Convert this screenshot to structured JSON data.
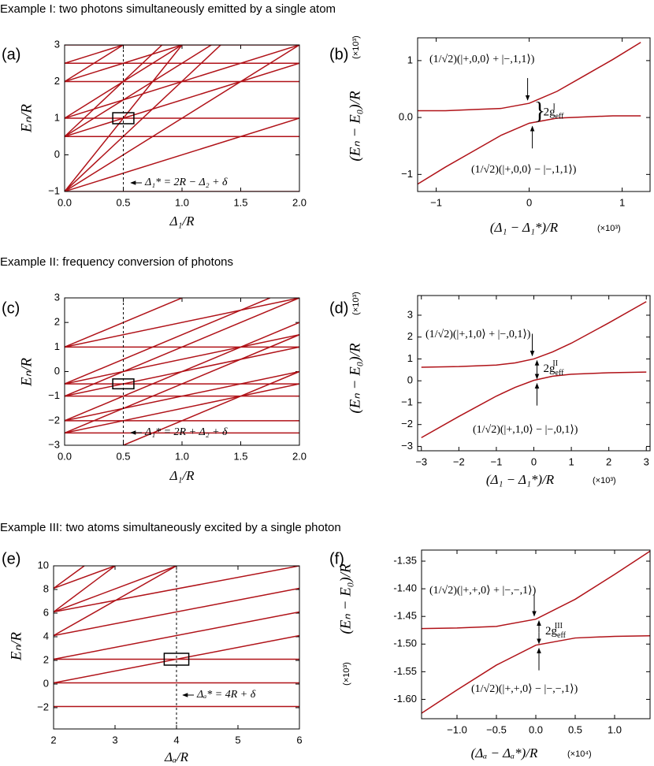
{
  "headings": [
    "Example I: two photons simultaneously emitted by a single atom",
    "Example II: frequency conversion of photons",
    "Example III: two atoms simultaneously excited by a single photon"
  ],
  "chart_data": [
    {
      "type": "line",
      "panel": "(a)",
      "x_label": "Δ₁/R",
      "y_label": "Eₙ/R",
      "color": "#b01218",
      "xlim": [
        0,
        2
      ],
      "ylim": [
        -1,
        3
      ],
      "xticks": [
        {
          "value": 0,
          "label": "0.0"
        },
        0.5,
        {
          "value": 1,
          "label": "1.0"
        },
        1.5,
        {
          "value": 2,
          "label": "2.0"
        }
      ],
      "yticks": [
        {
          "value": -1,
          "label": "−1"
        },
        0,
        1,
        2,
        3
      ],
      "series": [
        {
          "x": [
            0,
            2
          ],
          "values": [
            -1,
            -1
          ]
        },
        {
          "x": [
            0,
            2
          ],
          "values": [
            0.5,
            0.5
          ]
        },
        {
          "x": [
            0,
            2
          ],
          "values": [
            1,
            1
          ]
        },
        {
          "x": [
            0,
            2
          ],
          "values": [
            2,
            2
          ]
        },
        {
          "x": [
            0,
            2
          ],
          "values": [
            2.5,
            2.5
          ]
        },
        {
          "x": [
            0,
            2
          ],
          "values": [
            3,
            3
          ]
        },
        {
          "x": [
            0,
            2
          ],
          "values": [
            -1,
            1
          ]
        },
        {
          "x": [
            0,
            2
          ],
          "values": [
            -1,
            3
          ]
        },
        {
          "x": [
            0,
            1.33
          ],
          "values": [
            -1,
            3
          ]
        },
        {
          "x": [
            0,
            1
          ],
          "values": [
            -1,
            3
          ]
        },
        {
          "x": [
            0,
            2
          ],
          "values": [
            0.5,
            2.5
          ]
        },
        {
          "x": [
            0,
            1.25
          ],
          "values": [
            0.5,
            3
          ]
        },
        {
          "x": [
            0,
            0.83
          ],
          "values": [
            0.5,
            3
          ]
        },
        {
          "x": [
            0,
            2
          ],
          "values": [
            1,
            3
          ]
        },
        {
          "x": [
            0,
            1
          ],
          "values": [
            1,
            3
          ]
        },
        {
          "x": [
            0,
            1
          ],
          "values": [
            2,
            3
          ]
        },
        {
          "x": [
            0,
            0.5
          ],
          "values": [
            2,
            3
          ]
        },
        {
          "x": [
            0,
            0.5
          ],
          "values": [
            2.5,
            3
          ]
        }
      ],
      "marker_x": 0.5,
      "box": {
        "x": [
          0.41,
          0.59
        ],
        "y": [
          0.85,
          1.15
        ]
      },
      "annotation": "Δ₁* = 2R − Δ₂ + δ"
    },
    {
      "type": "line",
      "panel": "(b)",
      "x_label": "(Δ₁ − Δ₁*)/R",
      "x_unit": "(×10³)",
      "y_label": "(Eₙ − E₀)/R",
      "y_unit": "(×10³)",
      "color": "#b01218",
      "xlim": [
        -1.2,
        1.3
      ],
      "ylim": [
        -1.3,
        1.4
      ],
      "xticks": [
        {
          "value": -1,
          "label": "−1"
        },
        0,
        1
      ],
      "yticks": [
        {
          "value": -1,
          "label": "−1"
        },
        {
          "value": 0,
          "label": "0.0"
        },
        1
      ],
      "series": [
        {
          "x": [
            -1.2,
            -0.9,
            -0.6,
            -0.3,
            0,
            0.3,
            0.6,
            0.9,
            1.2
          ],
          "values": [
            0.12,
            0.12,
            0.14,
            0.16,
            0.25,
            0.46,
            0.74,
            1.02,
            1.32
          ]
        },
        {
          "x": [
            -1.2,
            -0.9,
            -0.6,
            -0.3,
            0,
            0.3,
            0.6,
            0.9,
            1.2
          ],
          "values": [
            -1.17,
            -0.87,
            -0.59,
            -0.31,
            -0.1,
            -0.01,
            0.01,
            0.03,
            0.03
          ]
        }
      ],
      "states": [
        "(1/√2)(|+,0,0⟩ + |−,1,1⟩)",
        "(1/√2)(|+,0,0⟩ − |−,1,1⟩)"
      ],
      "gap": {
        "text": "2g",
        "sub": "eff",
        "sup": "I"
      }
    },
    {
      "type": "line",
      "panel": "(c)",
      "x_label": "Δ₁/R",
      "y_label": "Eₙ/R",
      "color": "#b01218",
      "xlim": [
        0,
        2
      ],
      "ylim": [
        -3,
        3
      ],
      "xticks": [
        {
          "value": 0,
          "label": "0.0"
        },
        0.5,
        {
          "value": 1,
          "label": "1.0"
        },
        1.5,
        {
          "value": 2,
          "label": "2.0"
        }
      ],
      "yticks": [
        {
          "value": -3,
          "label": "−3"
        },
        {
          "value": -2,
          "label": "−2"
        },
        {
          "value": -1,
          "label": "−1"
        },
        0,
        1,
        2,
        3
      ],
      "series": [
        {
          "x": [
            0,
            2
          ],
          "values": [
            1,
            1
          ]
        },
        {
          "x": [
            0,
            2
          ],
          "values": [
            -0.5,
            -0.5
          ]
        },
        {
          "x": [
            0,
            2
          ],
          "values": [
            -1,
            -1
          ]
        },
        {
          "x": [
            0,
            2
          ],
          "values": [
            -2,
            -2
          ]
        },
        {
          "x": [
            0,
            2
          ],
          "values": [
            -2.5,
            -2.5
          ]
        },
        {
          "x": [
            0,
            2
          ],
          "values": [
            -2.5,
            -0.5
          ]
        },
        {
          "x": [
            0,
            2
          ],
          "values": [
            -2,
            0
          ]
        },
        {
          "x": [
            0,
            2
          ],
          "values": [
            -1,
            1
          ]
        },
        {
          "x": [
            0,
            2
          ],
          "values": [
            -0.5,
            1.5
          ]
        },
        {
          "x": [
            0,
            2
          ],
          "values": [
            1,
            3
          ]
        },
        {
          "x": [
            0,
            2
          ],
          "values": [
            -2.5,
            1.5
          ]
        },
        {
          "x": [
            0,
            2
          ],
          "values": [
            -2,
            2
          ]
        },
        {
          "x": [
            0,
            2
          ],
          "values": [
            -1,
            3
          ]
        },
        {
          "x": [
            0,
            1.75
          ],
          "values": [
            -0.5,
            3
          ]
        },
        {
          "x": [
            0,
            1
          ],
          "values": [
            1,
            3
          ]
        },
        {
          "x": [
            0.5,
            2
          ],
          "values": [
            -3,
            0
          ]
        }
      ],
      "marker_x": 0.5,
      "box": {
        "x": [
          0.41,
          0.59
        ],
        "y": [
          -0.7,
          -0.3
        ]
      },
      "annotation": "Δ₁* = 2R + Δ₂ + δ"
    },
    {
      "type": "line",
      "panel": "(d)",
      "x_label": "(Δ₁ − Δ₁*)/R",
      "x_unit": "(×10³)",
      "y_label": "(Eₙ − E₀)/R",
      "y_unit": "(×10³)",
      "color": "#b01218",
      "xlim": [
        -3.1,
        3.1
      ],
      "ylim": [
        -3.2,
        3.9
      ],
      "xticks": [
        {
          "value": -3,
          "label": "−3"
        },
        {
          "value": -2,
          "label": "−2"
        },
        {
          "value": -1,
          "label": "−1"
        },
        0,
        1,
        2,
        3
      ],
      "yticks": [
        {
          "value": -3,
          "label": "−3"
        },
        {
          "value": -2,
          "label": "−2"
        },
        {
          "value": -1,
          "label": "−1"
        },
        0,
        1,
        2,
        3
      ],
      "series": [
        {
          "x": [
            -3,
            -2,
            -1,
            -0.5,
            0,
            0.5,
            1,
            2,
            3
          ],
          "values": [
            0.62,
            0.65,
            0.72,
            0.82,
            1.0,
            1.32,
            1.72,
            2.65,
            3.62
          ]
        },
        {
          "x": [
            -3,
            -2,
            -1,
            -0.5,
            0,
            0.5,
            1,
            2,
            3
          ],
          "values": [
            -2.6,
            -1.63,
            -0.7,
            -0.3,
            0.02,
            0.21,
            0.3,
            0.37,
            0.4
          ]
        }
      ],
      "states": [
        "(1/√2)(|+,1,0⟩ + |−,0,1⟩)",
        "(1/√2)(|+,1,0⟩ − |−,0,1⟩)"
      ],
      "gap": {
        "text": "2g",
        "sub": "eff",
        "sup": "II"
      }
    },
    {
      "type": "line",
      "panel": "(e)",
      "x_label": "Δₐ/R",
      "y_label": "Eₙ/R",
      "color": "#b01218",
      "xlim": [
        2,
        6
      ],
      "ylim": [
        -3.8,
        10
      ],
      "xticks": [
        2,
        3,
        4,
        5,
        6
      ],
      "yticks": [
        {
          "value": -2,
          "label": "−2"
        },
        0,
        2,
        4,
        6,
        8,
        10
      ],
      "series": [
        {
          "x": [
            2,
            6
          ],
          "values": [
            -1.9,
            -1.9
          ]
        },
        {
          "x": [
            2,
            6
          ],
          "values": [
            0.1,
            0.1
          ]
        },
        {
          "x": [
            2,
            6
          ],
          "values": [
            2.1,
            2.1
          ]
        },
        {
          "x": [
            2,
            6
          ],
          "values": [
            0.1,
            4.1
          ]
        },
        {
          "x": [
            2,
            6
          ],
          "values": [
            2.1,
            6.1
          ]
        },
        {
          "x": [
            2,
            6
          ],
          "values": [
            4.1,
            8.1
          ]
        },
        {
          "x": [
            2,
            6
          ],
          "values": [
            6.1,
            10
          ]
        },
        {
          "x": [
            2,
            4
          ],
          "values": [
            4.1,
            10
          ]
        },
        {
          "x": [
            2,
            4
          ],
          "values": [
            6.1,
            10
          ]
        },
        {
          "x": [
            2,
            3
          ],
          "values": [
            6.1,
            10
          ]
        },
        {
          "x": [
            2,
            3
          ],
          "values": [
            8.1,
            10
          ]
        },
        {
          "x": [
            2,
            2.5
          ],
          "values": [
            8.1,
            10
          ]
        }
      ],
      "marker_x": 4,
      "box": {
        "x": [
          3.8,
          4.2
        ],
        "y": [
          1.6,
          2.6
        ]
      },
      "annotation": "Δₐ* = 4R + δ"
    },
    {
      "type": "line",
      "panel": "(f)",
      "x_label": "(Δₐ − Δₐ*)/R",
      "x_unit": "(×10⁴)",
      "y_label": "(Eₙ − E₀)/R",
      "y_unit": "(×10³)",
      "color": "#b01218",
      "xlim": [
        -1.45,
        1.45
      ],
      "ylim": [
        -1.635,
        -1.33
      ],
      "xticks": [
        {
          "value": -1,
          "label": "−1.0"
        },
        {
          "value": -0.5,
          "label": "−0.5"
        },
        {
          "value": 0,
          "label": "0.0"
        },
        0.5,
        {
          "value": 1,
          "label": "1.0"
        }
      ],
      "yticks": [
        -1.35,
        {
          "value": -1.4,
          "label": "-1.40"
        },
        -1.45,
        {
          "value": -1.5,
          "label": "-1.50"
        },
        -1.55,
        {
          "value": -1.6,
          "label": "-1.60"
        }
      ],
      "series": [
        {
          "x": [
            -1.45,
            -1,
            -0.5,
            0,
            0.5,
            1,
            1.45
          ],
          "values": [
            -1.472,
            -1.471,
            -1.468,
            -1.455,
            -1.419,
            -1.374,
            -1.332
          ]
        },
        {
          "x": [
            -1.45,
            -1,
            -0.5,
            0,
            0.5,
            1,
            1.45
          ],
          "values": [
            -1.625,
            -1.583,
            -1.538,
            -1.502,
            -1.489,
            -1.486,
            -1.485
          ]
        }
      ],
      "states": [
        "(1/√2)(|+,+,0⟩ + |−,−,1⟩)",
        "(1/√2)(|+,+,0⟩ − |−,−,1⟩)"
      ],
      "gap": {
        "text": "2g",
        "sub": "eff",
        "sup": "III"
      }
    }
  ]
}
